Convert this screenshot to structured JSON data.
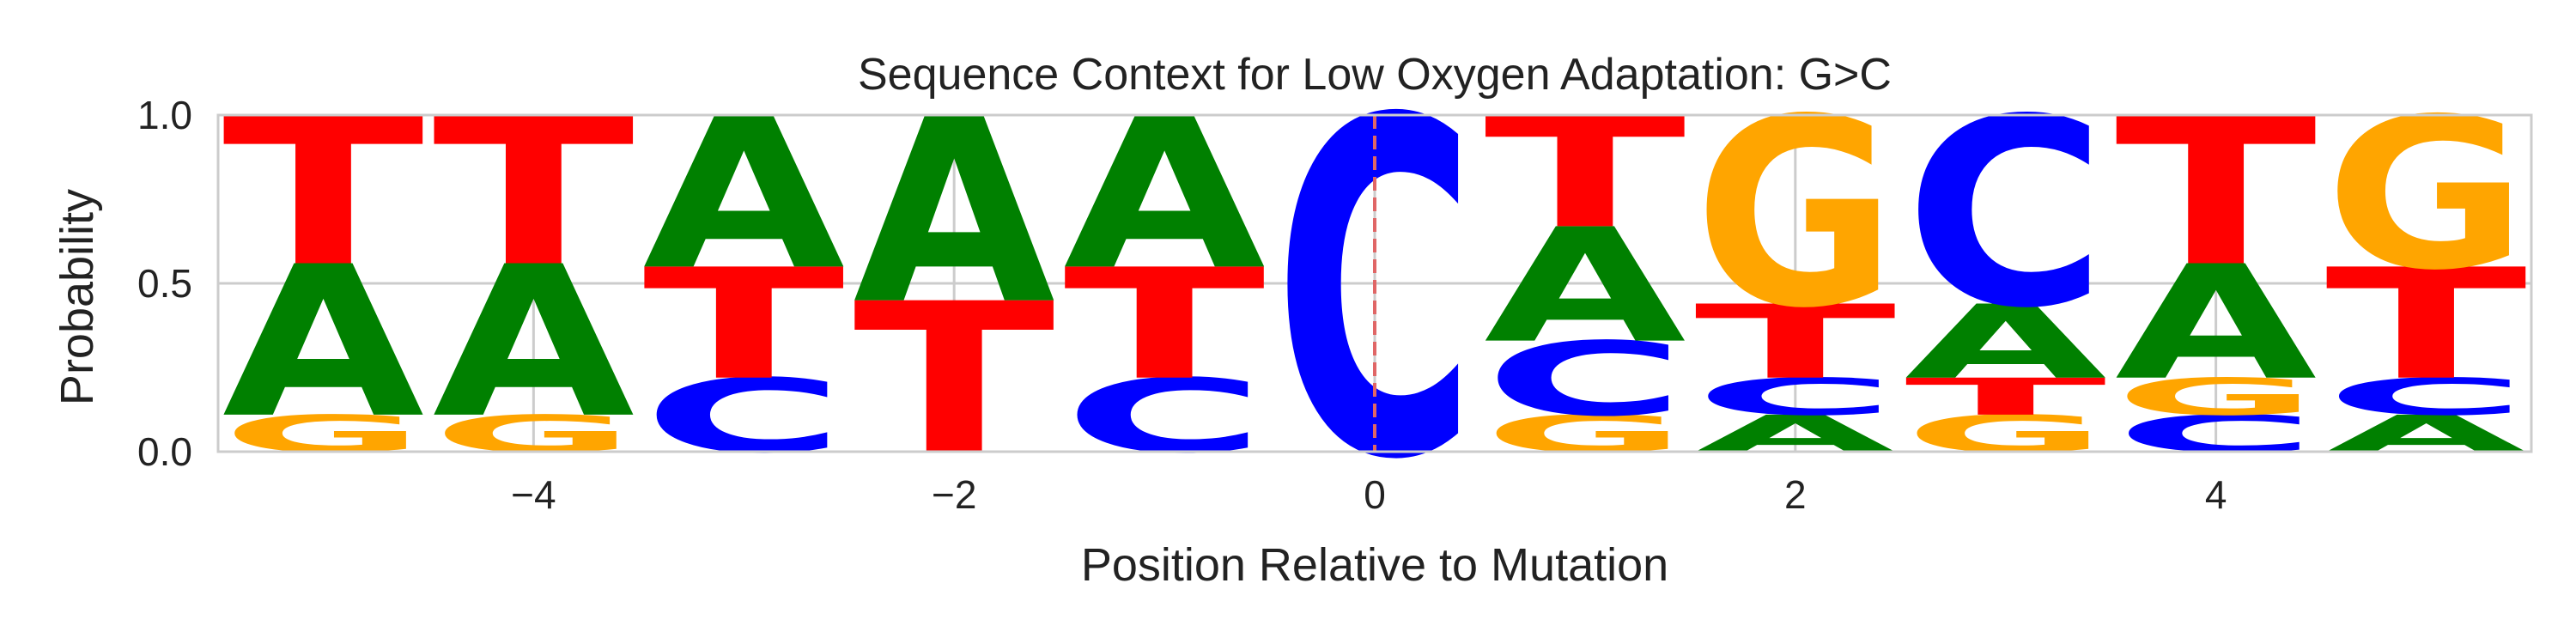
{
  "chart_data": {
    "type": "sequence-logo",
    "title": "Sequence Context for Low Oxygen Adaptation: G>C",
    "xlabel": "Position Relative to Mutation",
    "ylabel": "Probability",
    "xlim": [
      -5.5,
      5.5
    ],
    "ylim": [
      0,
      1
    ],
    "xticks": [
      -4,
      -2,
      0,
      2,
      4
    ],
    "xtick_labels": [
      "−4",
      "−2",
      "0",
      "2",
      "4"
    ],
    "yticks": [
      0,
      0.5,
      1
    ],
    "ytick_labels": [
      "0.0",
      "0.5",
      "1.0"
    ],
    "grid": true,
    "mutation_marker": {
      "x": 0,
      "color": "#e06666",
      "style": "dashed"
    },
    "colors": {
      "A": "#008000",
      "C": "#0000ff",
      "G": "#ffa500",
      "T": "#ff0000"
    },
    "positions": [
      {
        "pos": -5,
        "letters": [
          {
            "base": "G",
            "p": 0.11
          },
          {
            "base": "A",
            "p": 0.45
          },
          {
            "base": "T",
            "p": 0.44
          }
        ]
      },
      {
        "pos": -4,
        "letters": [
          {
            "base": "G",
            "p": 0.11
          },
          {
            "base": "A",
            "p": 0.45
          },
          {
            "base": "T",
            "p": 0.44
          }
        ]
      },
      {
        "pos": -3,
        "letters": [
          {
            "base": "C",
            "p": 0.22
          },
          {
            "base": "T",
            "p": 0.33
          },
          {
            "base": "A",
            "p": 0.45
          }
        ]
      },
      {
        "pos": -2,
        "letters": [
          {
            "base": "T",
            "p": 0.45
          },
          {
            "base": "A",
            "p": 0.55
          }
        ]
      },
      {
        "pos": -1,
        "letters": [
          {
            "base": "C",
            "p": 0.22
          },
          {
            "base": "T",
            "p": 0.33
          },
          {
            "base": "A",
            "p": 0.45
          }
        ]
      },
      {
        "pos": 0,
        "letters": [
          {
            "base": "C",
            "p": 1.0
          }
        ]
      },
      {
        "pos": 1,
        "letters": [
          {
            "base": "G",
            "p": 0.11
          },
          {
            "base": "C",
            "p": 0.22
          },
          {
            "base": "A",
            "p": 0.34
          },
          {
            "base": "T",
            "p": 0.33
          }
        ]
      },
      {
        "pos": 2,
        "letters": [
          {
            "base": "A",
            "p": 0.11
          },
          {
            "base": "C",
            "p": 0.11
          },
          {
            "base": "T",
            "p": 0.22
          },
          {
            "base": "G",
            "p": 0.56
          }
        ]
      },
      {
        "pos": 3,
        "letters": [
          {
            "base": "G",
            "p": 0.11
          },
          {
            "base": "T",
            "p": 0.11
          },
          {
            "base": "A",
            "p": 0.22
          },
          {
            "base": "C",
            "p": 0.56
          }
        ]
      },
      {
        "pos": 4,
        "letters": [
          {
            "base": "C",
            "p": 0.11
          },
          {
            "base": "G",
            "p": 0.11
          },
          {
            "base": "A",
            "p": 0.34
          },
          {
            "base": "T",
            "p": 0.44
          }
        ]
      },
      {
        "pos": 5,
        "letters": [
          {
            "base": "A",
            "p": 0.11
          },
          {
            "base": "C",
            "p": 0.11
          },
          {
            "base": "T",
            "p": 0.33
          },
          {
            "base": "G",
            "p": 0.45
          }
        ]
      }
    ]
  }
}
